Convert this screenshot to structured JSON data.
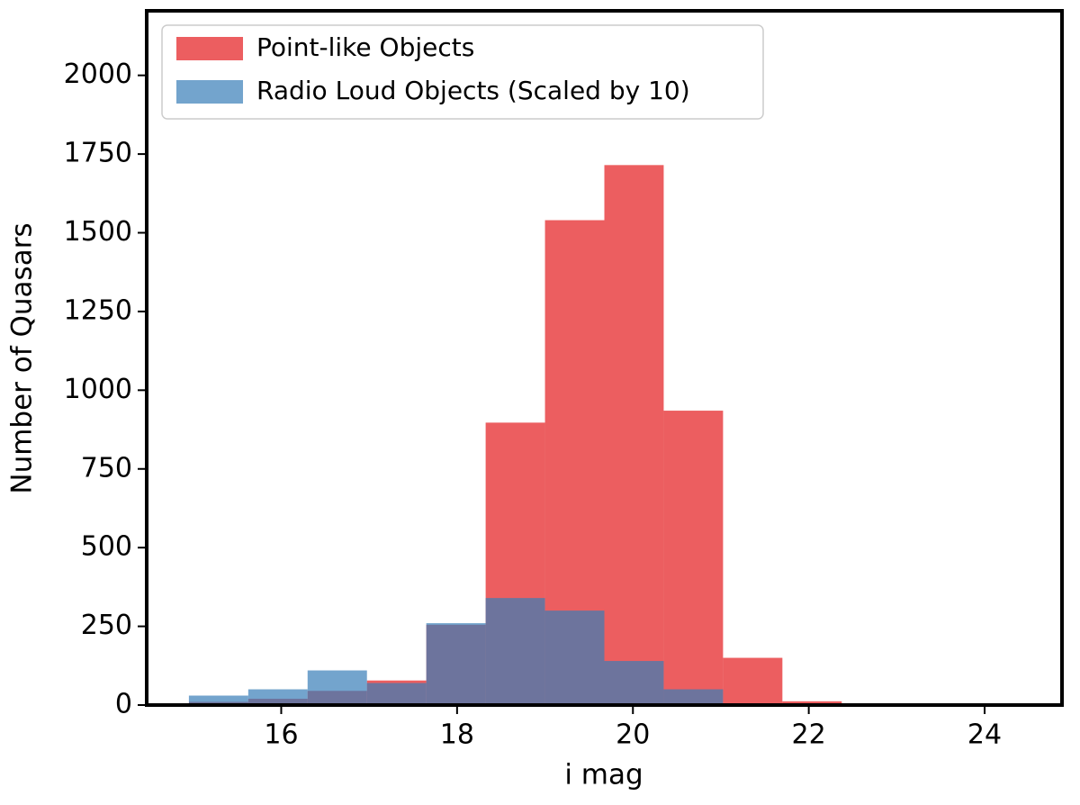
{
  "chart_data": {
    "type": "histogram",
    "x_label": "i mag",
    "y_label": "Number of Quasars",
    "bins": [
      14.95,
      15.625,
      16.3,
      16.975,
      17.65,
      18.325,
      19.0,
      19.675,
      20.35,
      21.025,
      21.7,
      22.375,
      23.05,
      23.725,
      24.4
    ],
    "series": [
      {
        "name": "Point-like Objects",
        "color": "#e41a1c",
        "values": [
          10,
          20,
          45,
          78,
          255,
          897,
          1540,
          1715,
          935,
          150,
          12,
          2,
          0,
          0
        ]
      },
      {
        "name": "Radio Loud Objects (Scaled by 10)",
        "color": "#377eb8",
        "values": [
          30,
          50,
          110,
          70,
          260,
          340,
          300,
          140,
          50,
          0,
          0,
          0,
          0,
          0
        ]
      }
    ],
    "alpha": 0.7,
    "xlim": [
      14.47,
      24.88
    ],
    "ylim": [
      0,
      2205
    ],
    "xticks": [
      16,
      18,
      20,
      22,
      24
    ],
    "yticks": [
      0,
      250,
      500,
      750,
      1000,
      1250,
      1500,
      1750,
      2000
    ],
    "legend": "upper left"
  }
}
